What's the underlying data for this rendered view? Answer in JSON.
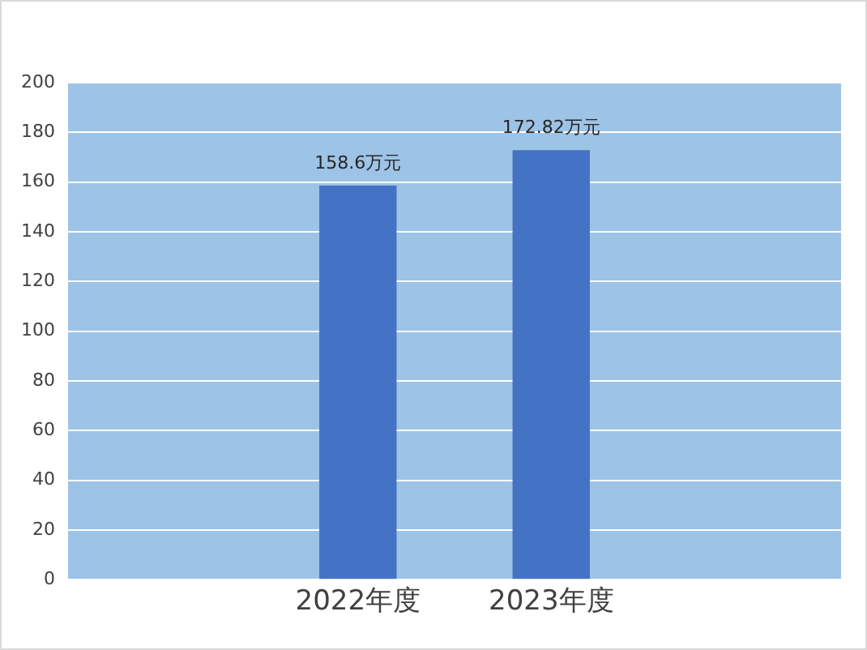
{
  "chart_data": {
    "type": "bar",
    "categories": [
      null,
      "2022年度",
      "2023年度",
      null
    ],
    "series": [
      {
        "color": "#4472c4",
        "values": [
          null,
          158.6,
          172.82,
          null
        ],
        "value_labels": [
          null,
          "158.6万元",
          "172.82万元",
          null
        ]
      }
    ],
    "ylim": [
      0,
      200
    ],
    "yticks": [
      0,
      20,
      40,
      60,
      80,
      100,
      120,
      140,
      160,
      180,
      200
    ],
    "grid": "y",
    "legend": false
  }
}
